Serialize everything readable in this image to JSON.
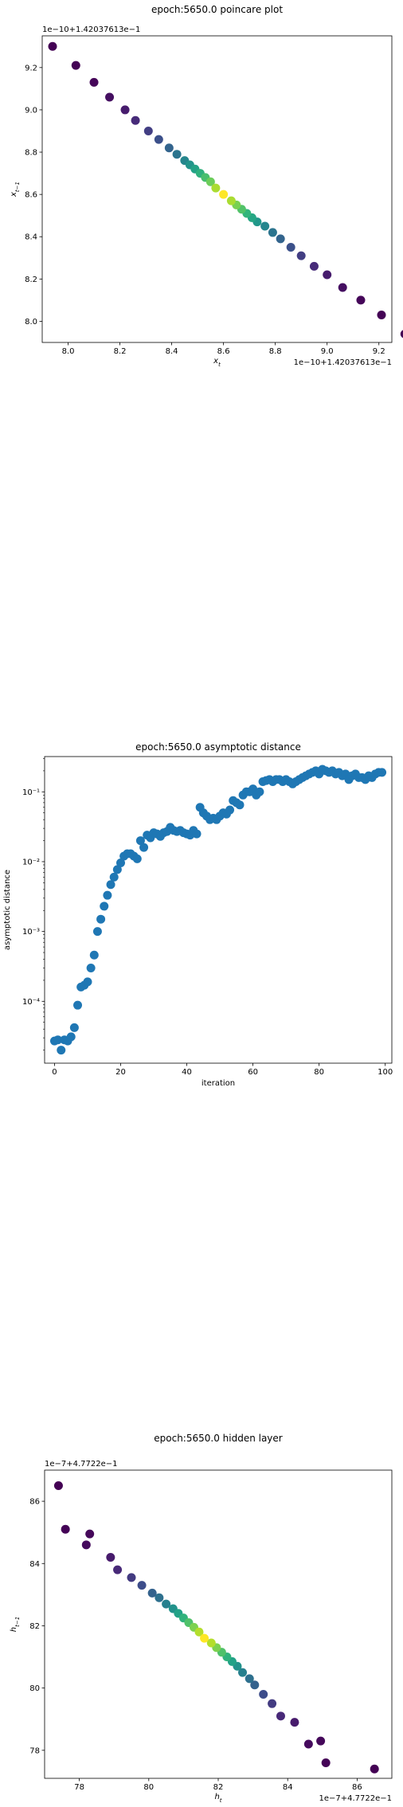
{
  "chart_data": [
    {
      "type": "scatter",
      "title": "epoch:5650.0 poincare plot",
      "xlabel": "x_t",
      "ylabel": "x_{t-1}",
      "x_offset": "1e−10+1.42037613e−1",
      "y_offset": "1e−10+1.42037613e−1",
      "xlim": [
        7.9,
        9.25
      ],
      "ylim": [
        7.9,
        9.35
      ],
      "xticks": [
        "8.0",
        "8.2",
        "8.4",
        "8.6",
        "8.8",
        "9.0",
        "9.2"
      ],
      "yticks": [
        "8.0",
        "8.2",
        "8.4",
        "8.6",
        "8.8",
        "9.0",
        "9.2"
      ],
      "colormap": "viridis",
      "points": [
        {
          "x": 7.94,
          "y": 9.3
        },
        {
          "x": 8.03,
          "y": 9.21
        },
        {
          "x": 8.1,
          "y": 9.13
        },
        {
          "x": 8.16,
          "y": 9.06
        },
        {
          "x": 8.22,
          "y": 9.0
        },
        {
          "x": 8.26,
          "y": 8.95
        },
        {
          "x": 8.31,
          "y": 8.9
        },
        {
          "x": 8.35,
          "y": 8.86
        },
        {
          "x": 8.39,
          "y": 8.82
        },
        {
          "x": 8.42,
          "y": 8.79
        },
        {
          "x": 8.45,
          "y": 8.76
        },
        {
          "x": 8.47,
          "y": 8.74
        },
        {
          "x": 8.49,
          "y": 8.72
        },
        {
          "x": 8.51,
          "y": 8.7
        },
        {
          "x": 8.53,
          "y": 8.68
        },
        {
          "x": 8.55,
          "y": 8.66
        },
        {
          "x": 8.57,
          "y": 8.63
        },
        {
          "x": 8.6,
          "y": 8.6
        },
        {
          "x": 8.63,
          "y": 8.57
        },
        {
          "x": 8.65,
          "y": 8.55
        },
        {
          "x": 8.67,
          "y": 8.53
        },
        {
          "x": 8.69,
          "y": 8.51
        },
        {
          "x": 8.71,
          "y": 8.49
        },
        {
          "x": 8.73,
          "y": 8.47
        },
        {
          "x": 8.76,
          "y": 8.45
        },
        {
          "x": 8.79,
          "y": 8.42
        },
        {
          "x": 8.82,
          "y": 8.39
        },
        {
          "x": 8.86,
          "y": 8.35
        },
        {
          "x": 8.9,
          "y": 8.31
        },
        {
          "x": 8.95,
          "y": 8.26
        },
        {
          "x": 9.0,
          "y": 8.22
        },
        {
          "x": 9.06,
          "y": 8.16
        },
        {
          "x": 9.13,
          "y": 8.1
        },
        {
          "x": 9.21,
          "y": 8.03
        },
        {
          "x": 9.3,
          "y": 7.94
        }
      ]
    },
    {
      "type": "scatter",
      "title": "epoch:5650.0 asymptotic distance",
      "xlabel": "iteration",
      "ylabel": "asymptotic distance",
      "yscale": "log",
      "xlim": [
        -3,
        102
      ],
      "ylim": [
        1.3e-05,
        0.32
      ],
      "xticks": [
        "0",
        "20",
        "40",
        "60",
        "80",
        "100"
      ],
      "yticks": [
        "10⁻⁴",
        "10⁻³",
        "10⁻²",
        "10⁻¹"
      ],
      "color": "#1f77b4",
      "x": [
        0,
        1,
        2,
        3,
        4,
        5,
        6,
        7,
        8,
        9,
        10,
        11,
        12,
        13,
        14,
        15,
        16,
        17,
        18,
        19,
        20,
        21,
        22,
        23,
        24,
        25,
        26,
        27,
        28,
        29,
        30,
        31,
        32,
        33,
        34,
        35,
        36,
        37,
        38,
        39,
        40,
        41,
        42,
        43,
        44,
        45,
        46,
        47,
        48,
        49,
        50,
        51,
        52,
        53,
        54,
        55,
        56,
        57,
        58,
        59,
        60,
        61,
        62,
        63,
        64,
        65,
        66,
        67,
        68,
        69,
        70,
        71,
        72,
        73,
        74,
        75,
        76,
        77,
        78,
        79,
        80,
        81,
        82,
        83,
        84,
        85,
        86,
        87,
        88,
        89,
        90,
        91,
        92,
        93,
        94,
        95,
        96,
        97,
        98,
        99
      ],
      "y": [
        2.7e-05,
        2.8e-05,
        2e-05,
        2.8e-05,
        2.7e-05,
        3.1e-05,
        4.2e-05,
        8.8e-05,
        0.00016,
        0.00017,
        0.00019,
        0.0003,
        0.00046,
        0.001,
        0.0015,
        0.0023,
        0.0033,
        0.0047,
        0.006,
        0.0077,
        0.0096,
        0.012,
        0.013,
        0.013,
        0.012,
        0.011,
        0.02,
        0.016,
        0.024,
        0.022,
        0.026,
        0.025,
        0.023,
        0.026,
        0.027,
        0.031,
        0.028,
        0.027,
        0.028,
        0.026,
        0.025,
        0.024,
        0.028,
        0.025,
        0.06,
        0.05,
        0.045,
        0.04,
        0.042,
        0.04,
        0.045,
        0.05,
        0.048,
        0.055,
        0.075,
        0.07,
        0.065,
        0.09,
        0.1,
        0.1,
        0.11,
        0.09,
        0.1,
        0.14,
        0.145,
        0.15,
        0.14,
        0.15,
        0.15,
        0.14,
        0.15,
        0.14,
        0.13,
        0.14,
        0.15,
        0.16,
        0.17,
        0.18,
        0.19,
        0.2,
        0.18,
        0.21,
        0.2,
        0.19,
        0.2,
        0.18,
        0.19,
        0.17,
        0.18,
        0.15,
        0.17,
        0.18,
        0.16,
        0.16,
        0.15,
        0.17,
        0.16,
        0.18,
        0.19,
        0.19
      ]
    },
    {
      "type": "scatter",
      "title": "epoch:5650.0 hidden layer",
      "xlabel": "h_t",
      "ylabel": "h_{t-1}",
      "x_offset": "1e−7+4.7722e−1",
      "y_offset": "1e−7+4.7722e−1",
      "xlim": [
        77.0,
        87.0
      ],
      "ylim": [
        77.1,
        87.0
      ],
      "xticks": [
        "78",
        "80",
        "82",
        "84",
        "86"
      ],
      "yticks": [
        "78",
        "80",
        "82",
        "84",
        "86"
      ],
      "colormap": "viridis",
      "points": [
        {
          "x": 77.4,
          "y": 86.5
        },
        {
          "x": 77.6,
          "y": 85.1
        },
        {
          "x": 78.2,
          "y": 84.6
        },
        {
          "x": 78.3,
          "y": 84.95
        },
        {
          "x": 78.9,
          "y": 84.2
        },
        {
          "x": 79.1,
          "y": 83.8
        },
        {
          "x": 79.5,
          "y": 83.55
        },
        {
          "x": 79.8,
          "y": 83.3
        },
        {
          "x": 80.1,
          "y": 83.05
        },
        {
          "x": 80.3,
          "y": 82.9
        },
        {
          "x": 80.5,
          "y": 82.7
        },
        {
          "x": 80.7,
          "y": 82.55
        },
        {
          "x": 80.85,
          "y": 82.4
        },
        {
          "x": 81.0,
          "y": 82.25
        },
        {
          "x": 81.15,
          "y": 82.1
        },
        {
          "x": 81.3,
          "y": 81.95
        },
        {
          "x": 81.45,
          "y": 81.8
        },
        {
          "x": 81.6,
          "y": 81.6
        },
        {
          "x": 81.8,
          "y": 81.45
        },
        {
          "x": 81.95,
          "y": 81.3
        },
        {
          "x": 82.1,
          "y": 81.15
        },
        {
          "x": 82.25,
          "y": 81.0
        },
        {
          "x": 82.4,
          "y": 80.85
        },
        {
          "x": 82.55,
          "y": 80.7
        },
        {
          "x": 82.7,
          "y": 80.5
        },
        {
          "x": 82.9,
          "y": 80.3
        },
        {
          "x": 83.05,
          "y": 80.1
        },
        {
          "x": 83.3,
          "y": 79.8
        },
        {
          "x": 83.55,
          "y": 79.5
        },
        {
          "x": 83.8,
          "y": 79.1
        },
        {
          "x": 84.2,
          "y": 78.9
        },
        {
          "x": 84.6,
          "y": 78.2
        },
        {
          "x": 84.95,
          "y": 78.3
        },
        {
          "x": 85.1,
          "y": 77.6
        },
        {
          "x": 86.5,
          "y": 77.4
        }
      ]
    }
  ]
}
